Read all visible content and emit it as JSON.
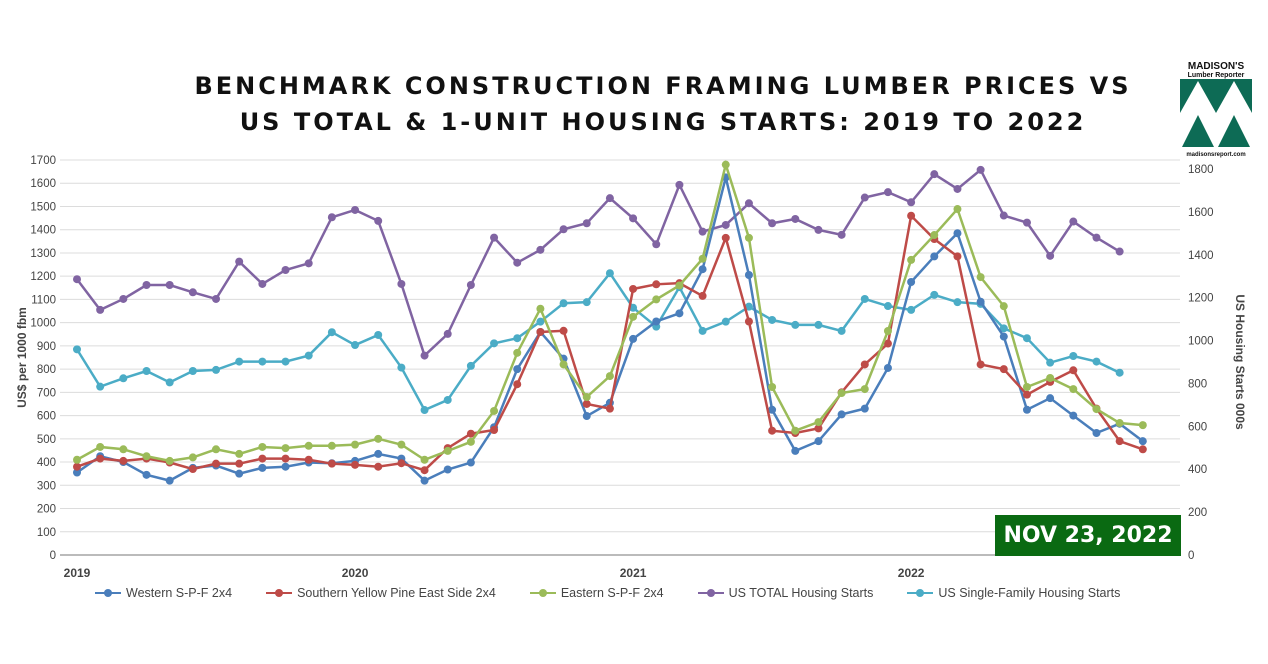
{
  "chart_data": {
    "type": "line",
    "title_line1": "BENCHMARK CONSTRUCTION FRAMING LUMBER PRICES VS",
    "title_line2": "US TOTAL & 1-UNIT HOUSING STARTS: 2019 TO 2022",
    "ylabel": "US$ per 1000 fbm",
    "y2label": "US Housing Starts 000s",
    "ylim": [
      0,
      1700
    ],
    "y2lim": [
      0,
      1800
    ],
    "yticks": [
      0,
      100,
      200,
      300,
      400,
      500,
      600,
      700,
      800,
      900,
      1000,
      1100,
      1200,
      1300,
      1400,
      1500,
      1600,
      1700
    ],
    "y2ticks": [
      0,
      200,
      400,
      600,
      800,
      1000,
      1200,
      1400,
      1600,
      1800
    ],
    "xticks": [
      "2019",
      "2020",
      "2021",
      "2022"
    ],
    "x_start": "2019-01",
    "x_step": "month",
    "grid": true,
    "legend_position": "bottom",
    "series": [
      {
        "name": "Western S-P-F 2x4",
        "axis": "left",
        "color": "#4a7ebb",
        "values": [
          355,
          425,
          400,
          345,
          320,
          375,
          385,
          350,
          375,
          380,
          398,
          395,
          405,
          435,
          415,
          320,
          368,
          398,
          550,
          800,
          960,
          845,
          598,
          655,
          930,
          1005,
          1040,
          1230,
          1625,
          1205,
          625,
          448,
          490,
          605,
          630,
          805,
          1175,
          1285,
          1385,
          1090,
          940,
          625,
          675,
          600,
          525,
          565,
          490
        ]
      },
      {
        "name": "Southern Yellow Pine East Side 2x4",
        "axis": "left",
        "color": "#be4b48",
        "values": [
          380,
          415,
          405,
          415,
          398,
          370,
          393,
          393,
          415,
          415,
          410,
          393,
          388,
          380,
          395,
          365,
          460,
          522,
          538,
          735,
          960,
          965,
          650,
          630,
          1145,
          1165,
          1170,
          1115,
          1365,
          1005,
          535,
          525,
          545,
          700,
          820,
          910,
          1460,
          1360,
          1285,
          820,
          800,
          690,
          745,
          795,
          630,
          490,
          455
        ]
      },
      {
        "name": "Eastern S-P-F 2x4",
        "axis": "left",
        "color": "#9bbb59",
        "values": [
          410,
          465,
          455,
          425,
          405,
          420,
          455,
          435,
          465,
          460,
          470,
          470,
          475,
          500,
          475,
          410,
          448,
          487,
          620,
          870,
          1060,
          820,
          680,
          770,
          1025,
          1100,
          1160,
          1275,
          1680,
          1365,
          723,
          535,
          572,
          697,
          714,
          964,
          1270,
          1377,
          1489,
          1196,
          1071,
          723,
          762,
          714,
          628,
          568,
          559
        ]
      },
      {
        "name": "US TOTAL Housing Starts",
        "axis": "right",
        "color": "#8064a2",
        "values": [
          1286,
          1143,
          1194,
          1259,
          1259,
          1225,
          1194,
          1368,
          1264,
          1329,
          1360,
          1575,
          1609,
          1558,
          1264,
          930,
          1031,
          1259,
          1480,
          1363,
          1423,
          1519,
          1547,
          1664,
          1570,
          1449,
          1726,
          1508,
          1539,
          1640,
          1547,
          1567,
          1516,
          1493,
          1667,
          1692,
          1645,
          1776,
          1707,
          1796,
          1583,
          1550,
          1395,
          1555,
          1480,
          1415
        ]
      },
      {
        "name": "US Single-Family Housing Starts",
        "axis": "right",
        "color": "#4bacc6",
        "values": [
          959,
          785,
          824,
          858,
          805,
          858,
          863,
          902,
          902,
          902,
          930,
          1039,
          979,
          1026,
          874,
          676,
          723,
          882,
          987,
          1011,
          1088,
          1174,
          1179,
          1314,
          1153,
          1065,
          1249,
          1045,
          1088,
          1158,
          1096,
          1073,
          1073,
          1045,
          1194,
          1161,
          1143,
          1213,
          1179,
          1171,
          1057,
          1011,
          897,
          928,
          902,
          850
        ]
      }
    ]
  },
  "badge": "NOV 23, 2022",
  "logo": {
    "line1": "MADISON'S",
    "line2": "Lumber Reporter",
    "line3": "madisonsreport.com",
    "color": "#0d6b55"
  }
}
